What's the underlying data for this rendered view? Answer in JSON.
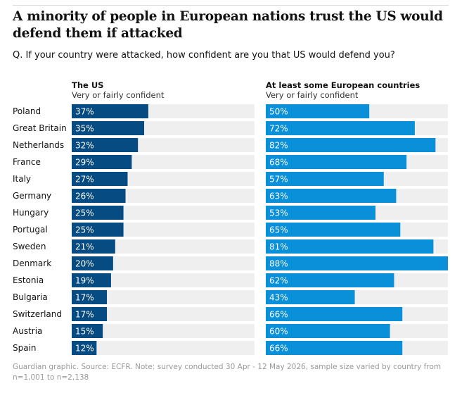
{
  "title": "A minority of people in European nations trust the US would defend them if attacked",
  "question": "Q. If your country were attacked, how confident are you that US would defend you?",
  "footer": "Guardian graphic. Source: ECFR. Note: survey conducted 30 Apr - 12 May 2026, sample size varied by country from n=1,001 to n=2,138",
  "colors": {
    "us_bar": "#074b83",
    "europe_bar": "#0a8fd9",
    "track": "#efefef",
    "label_text": "#ffffff"
  },
  "chart_data": {
    "type": "bar",
    "orientation": "horizontal",
    "value_suffix": "%",
    "xlim": [
      0,
      100
    ],
    "categories": [
      "Poland",
      "Great Britain",
      "Netherlands",
      "France",
      "Italy",
      "Germany",
      "Hungary",
      "Portugal",
      "Sweden",
      "Denmark",
      "Estonia",
      "Bulgaria",
      "Switzerland",
      "Austria",
      "Spain"
    ],
    "series": [
      {
        "name": "The US",
        "subtitle": "Very or fairly confident",
        "values": [
          37,
          35,
          32,
          29,
          27,
          26,
          25,
          25,
          21,
          20,
          19,
          17,
          17,
          15,
          12
        ]
      },
      {
        "name": "At least some European countries",
        "subtitle": "Very or fairly confident",
        "values": [
          50,
          72,
          82,
          68,
          57,
          63,
          53,
          65,
          81,
          88,
          62,
          43,
          66,
          60,
          66
        ]
      }
    ]
  }
}
